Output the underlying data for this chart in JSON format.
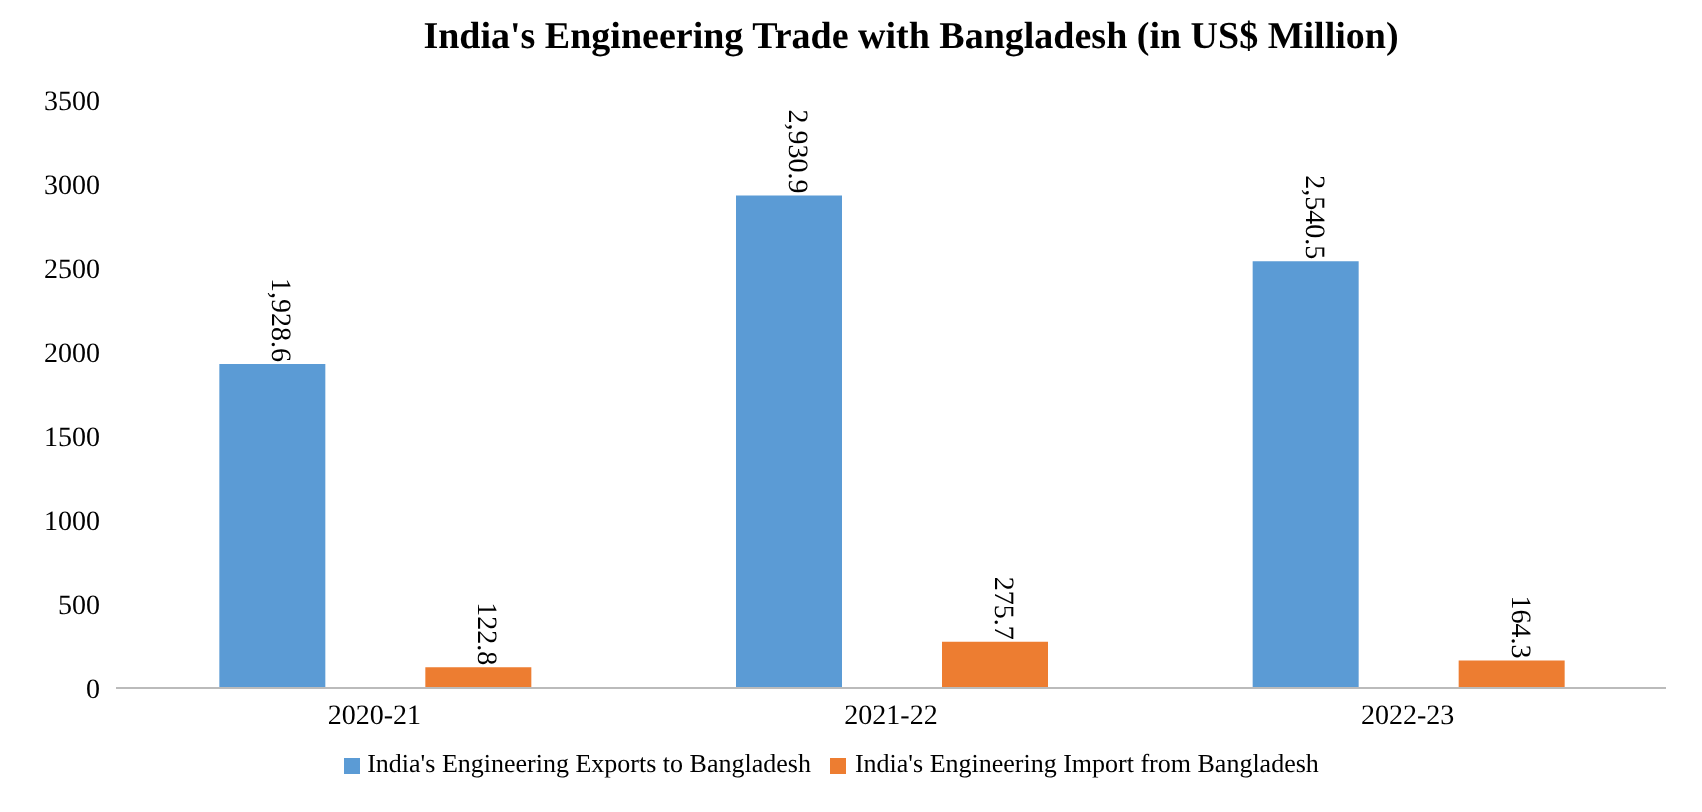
{
  "chart_data": {
    "type": "bar",
    "title": "India's Engineering Trade with Bangladesh (in US$ Million)",
    "categories": [
      "2020-21",
      "2021-22",
      "2022-23"
    ],
    "series": [
      {
        "name": "India's Engineering Exports to Bangladesh",
        "color": "#5b9bd5",
        "values": [
          1928.6,
          2930.9,
          2540.5
        ],
        "value_labels": [
          "1,928.6",
          "2,930.9",
          "2,540.5"
        ]
      },
      {
        "name": "India's Engineering Import from Bangladesh",
        "color": "#ed7d31",
        "values": [
          122.8,
          275.7,
          164.3
        ],
        "value_labels": [
          "122.8",
          "275.7",
          "164.3"
        ]
      }
    ],
    "ylim": [
      0,
      3500
    ],
    "yticks": [
      0,
      500,
      1000,
      1500,
      2000,
      2500,
      3000,
      3500
    ],
    "grid": false,
    "legend": "bottom"
  }
}
